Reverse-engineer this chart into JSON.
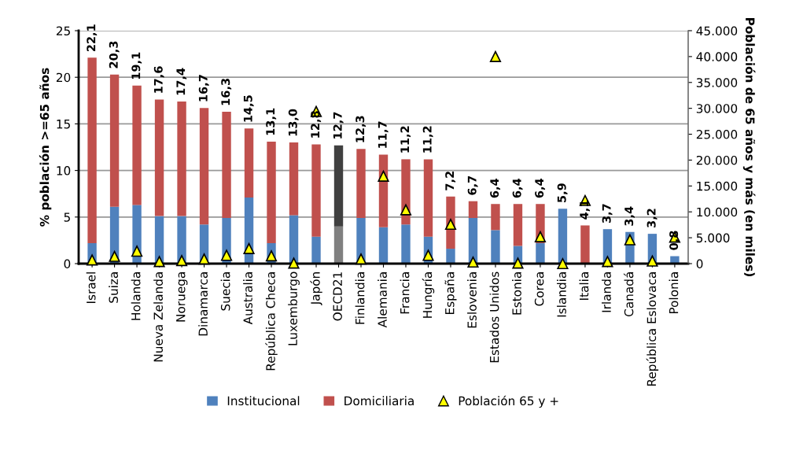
{
  "chart_data": {
    "type": "bar",
    "stacked": true,
    "categories": [
      "Israel",
      "Suiza",
      "Holanda",
      "Nueva Zelanda",
      "Noruega",
      "Dinamarca",
      "Suecia",
      "Australia",
      "República Checa",
      "Luxemburgo",
      "Japón",
      "OECD21",
      "Finlandia",
      "Alemania",
      "Francia",
      "Hungría",
      "España",
      "Eslovenia",
      "Estados Unidos",
      "Estonia",
      "Corea",
      "Islandia",
      "Italia",
      "Irlanda",
      "Canadá",
      "República Eslovaca",
      "Polonia"
    ],
    "series": [
      {
        "name": "Institucional",
        "color": "#4f81bd",
        "colors": [
          "#4f81bd",
          "#4f81bd",
          "#4f81bd",
          "#4f81bd",
          "#4f81bd",
          "#4f81bd",
          "#4f81bd",
          "#4f81bd",
          "#4f81bd",
          "#4f81bd",
          "#4f81bd",
          "#808080",
          "#4f81bd",
          "#4f81bd",
          "#4f81bd",
          "#4f81bd",
          "#4f81bd",
          "#4f81bd",
          "#4f81bd",
          "#4f81bd",
          "#4f81bd",
          "#4f81bd",
          "#4f81bd",
          "#4f81bd",
          "#4f81bd",
          "#4f81bd",
          "#4f81bd"
        ],
        "values": [
          2.2,
          6.1,
          6.3,
          5.1,
          5.1,
          4.2,
          4.9,
          7.1,
          2.2,
          5.2,
          2.9,
          4.0,
          4.9,
          3.9,
          4.2,
          2.9,
          1.6,
          4.9,
          3.6,
          1.9,
          2.2,
          5.9,
          0,
          3.7,
          3.4,
          3.2,
          0.8
        ]
      },
      {
        "name": "Domiciliaria",
        "color": "#c0504d",
        "colors": [
          "#c0504d",
          "#c0504d",
          "#c0504d",
          "#c0504d",
          "#c0504d",
          "#c0504d",
          "#c0504d",
          "#c0504d",
          "#c0504d",
          "#c0504d",
          "#c0504d",
          "#404040",
          "#c0504d",
          "#c0504d",
          "#c0504d",
          "#c0504d",
          "#c0504d",
          "#c0504d",
          "#c0504d",
          "#c0504d",
          "#c0504d",
          "#c0504d",
          "#c0504d",
          "#c0504d",
          "#c0504d",
          "#c0504d",
          "#c0504d"
        ],
        "values": [
          19.9,
          14.2,
          12.8,
          12.5,
          12.3,
          12.5,
          11.4,
          7.4,
          10.9,
          7.8,
          9.9,
          8.7,
          7.4,
          7.8,
          7.0,
          8.3,
          5.6,
          1.8,
          2.8,
          4.5,
          4.2,
          0,
          4.1,
          0,
          0,
          0,
          0
        ]
      },
      {
        "name": "Población 65 y +",
        "type": "scatter",
        "axis": "y2",
        "marker": "triangle",
        "color": "#ffff00",
        "values": [
          700,
          1400,
          2400,
          400,
          600,
          900,
          1600,
          2900,
          1500,
          100,
          29400,
          null,
          900,
          16900,
          10400,
          1600,
          7600,
          300,
          40000,
          100,
          5200,
          0,
          12200,
          400,
          4600,
          500,
          5100
        ]
      }
    ],
    "totals": [
      "22,1",
      "20,3",
      "19,1",
      "17,6",
      "17,4",
      "16,7",
      "16,3",
      "14,5",
      "13,1",
      "13,0",
      "12,8",
      "12,7",
      "12,3",
      "11,7",
      "11,2",
      "11,2",
      "7,2",
      "6,7",
      "6,4",
      "6,4",
      "6,4",
      "5,9",
      "4,1",
      "3,7",
      "3,4",
      "3,2",
      "0,8"
    ],
    "ylabel": "% población >=65 años",
    "y2label": "Población de 65 años y más (en miles)",
    "ylim": [
      0,
      25
    ],
    "yticks": [
      0,
      5,
      10,
      15,
      20,
      25
    ],
    "y2lim": [
      0,
      45000
    ],
    "y2ticks": [
      {
        "value": 0,
        "label": "0"
      },
      {
        "value": 5000,
        "label": "5.000"
      },
      {
        "value": 10000,
        "label": "10.000"
      },
      {
        "value": 15000,
        "label": "15.000"
      },
      {
        "value": 20000,
        "label": "20.000"
      },
      {
        "value": 25000,
        "label": "25.000"
      },
      {
        "value": 30000,
        "label": "30.000"
      },
      {
        "value": 35000,
        "label": "35.000"
      },
      {
        "value": 40000,
        "label": "40.000"
      },
      {
        "value": 45000,
        "label": "45.000"
      }
    ],
    "grid": "y",
    "legend": "bottom"
  }
}
